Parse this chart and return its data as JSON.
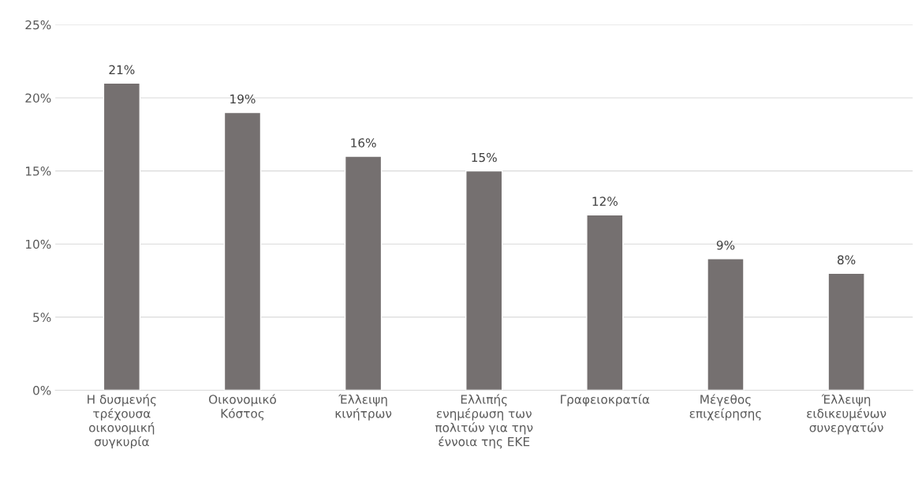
{
  "chart_data": {
    "type": "bar",
    "categories": [
      "Η δυσμενής\nτρέχουσα\nοικονομική\nσυγκυρία",
      "Οικονομικό\nΚόστος",
      "Έλλειψη\nκινήτρων",
      "Ελλιπής\nενημέρωση των\nπολιτών για την\nέννοια της ΕΚΕ",
      "Γραφειοκρατία",
      "Μέγεθος\nεπιχείρησης",
      "Έλλειψη\nειδικευμένων\nσυνεργατών"
    ],
    "values": [
      21,
      19,
      16,
      15,
      12,
      9,
      8
    ],
    "value_labels": [
      "21%",
      "19%",
      "16%",
      "15%",
      "12%",
      "9%",
      "8%"
    ],
    "color": "#757070",
    "ylim": [
      0,
      25
    ],
    "yticks": [
      {
        "value": 0,
        "label": "0%"
      },
      {
        "value": 5,
        "label": "5%"
      },
      {
        "value": 10,
        "label": "10%"
      },
      {
        "value": 15,
        "label": "15%"
      },
      {
        "value": 20,
        "label": "20%"
      },
      {
        "value": 25,
        "label": "25%"
      }
    ],
    "grid": "y"
  }
}
